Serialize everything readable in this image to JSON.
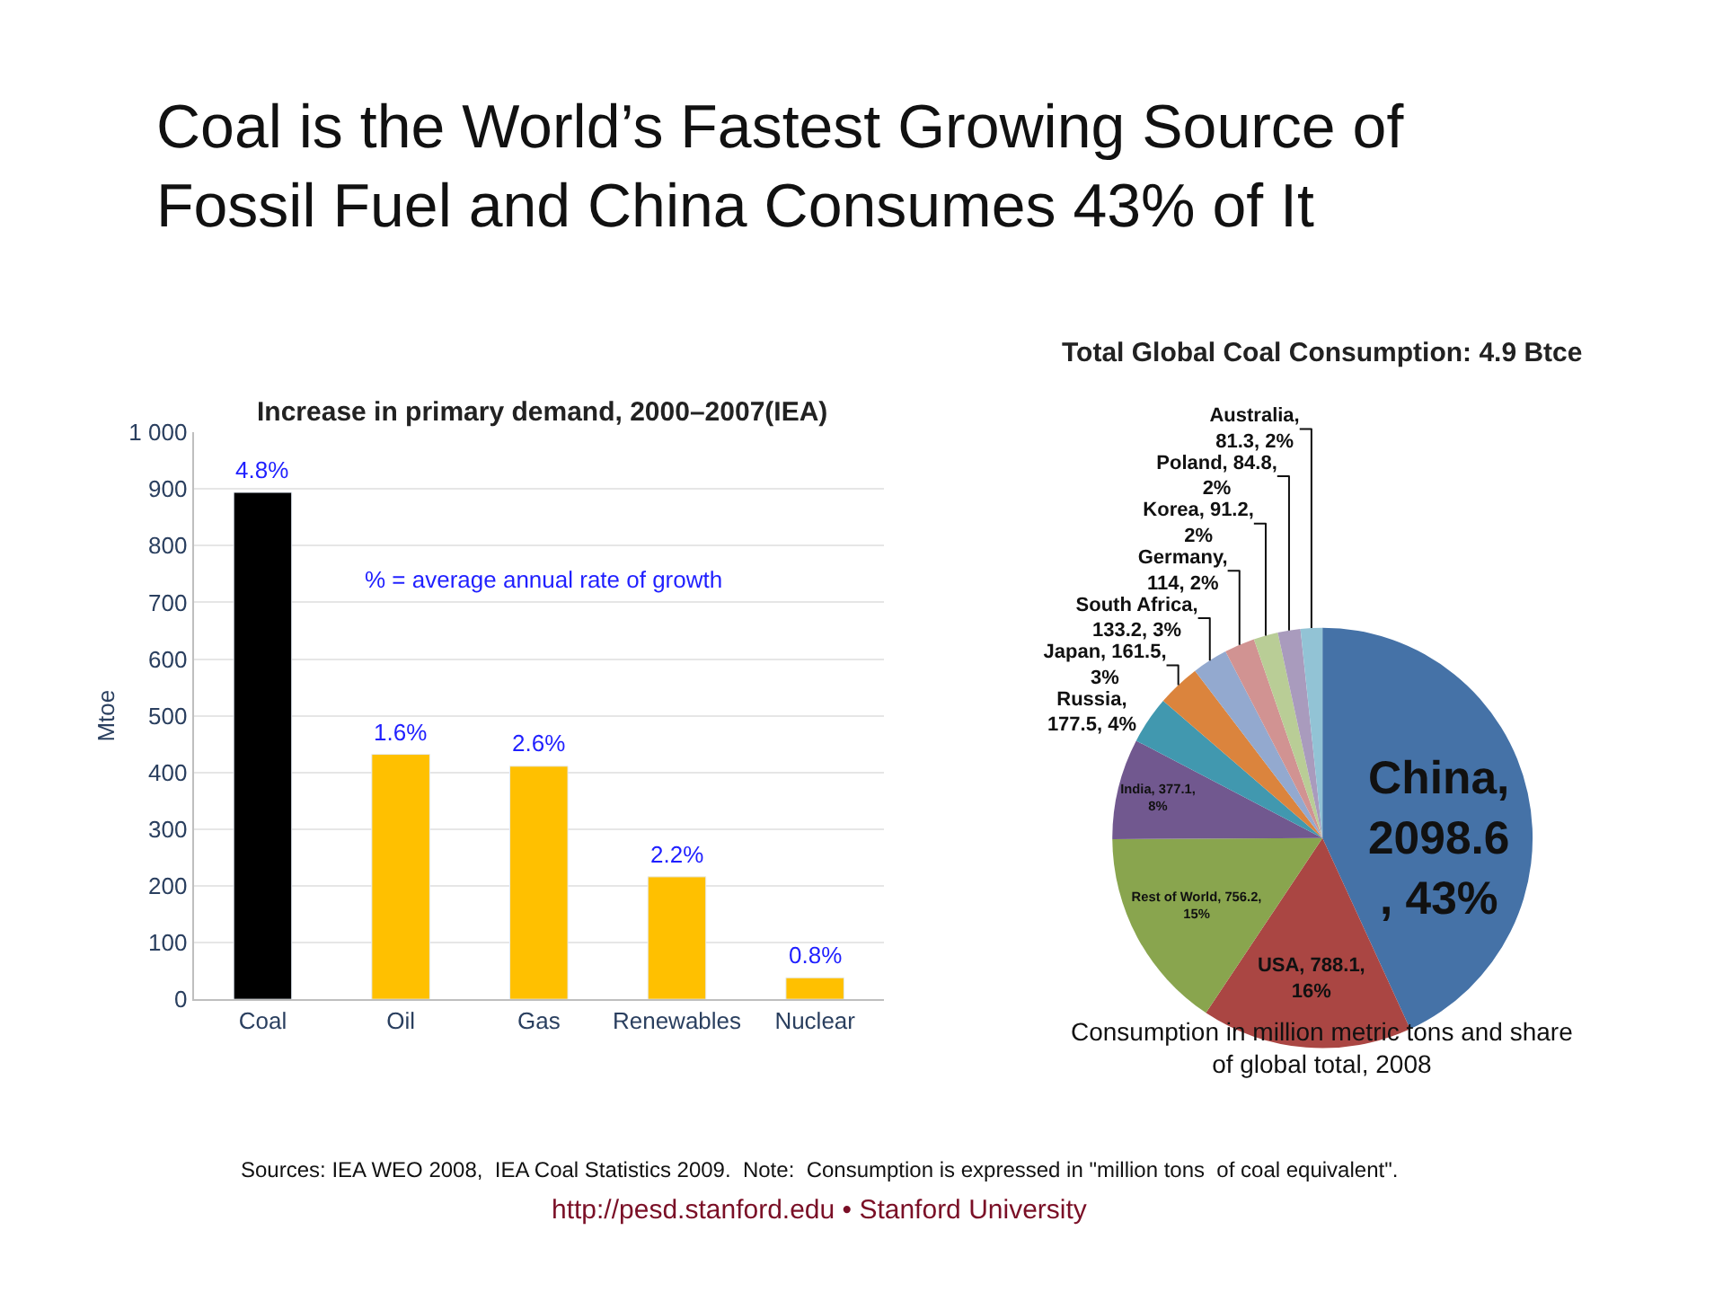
{
  "chart_data": [
    {
      "type": "bar",
      "title": "Coal is the World’s Fastest Growing Source of\nFossil Fuel and China Consumes 43% of It",
      "subtitle": "Increase in primary demand, 2000–2007(IEA)",
      "ylabel": "Mtoe",
      "categories": [
        "Coal",
        "Oil",
        "Gas",
        "Renewables",
        "Nuclear"
      ],
      "values": [
        894,
        432,
        411,
        216,
        38
      ],
      "colors": [
        "#000000",
        "#ffc000",
        "#ffc000",
        "#ffc000",
        "#ffc000"
      ],
      "ylim": [
        0,
        1000
      ],
      "yticks": [
        0,
        100,
        200,
        300,
        400,
        500,
        600,
        700,
        800,
        900,
        {
          "value": 1000,
          "label": "1 000"
        }
      ],
      "grid": "y",
      "legend": false,
      "annotations": [
        {
          "text": "4.8%",
          "x": "Coal",
          "y": 894
        },
        {
          "text": "1.6%",
          "x": "Oil",
          "y": 432
        },
        {
          "text": "2.6%",
          "x": "Gas",
          "y": 411
        },
        {
          "text": "2.2%",
          "x": "Renewables",
          "y": 216
        },
        {
          "text": "0.8%",
          "x": "Nuclear",
          "y": 38
        },
        "% = average annual rate of growth",
        "Sources: IEA WEO 2008,  IEA Coal Statistics 2009.  Note:  Consumption is expressed in \"million tons  of coal equivalent\".",
        "http://pesd.stanford.edu • Stanford University"
      ]
    },
    {
      "type": "pie",
      "title": "Total Global Coal Consumption: 4.9 Btce",
      "categories": [
        "China",
        "USA",
        "Rest of World",
        "India",
        "Russia",
        "Japan",
        "South Africa",
        "Germany",
        "Korea",
        "Poland",
        "Australia"
      ],
      "values": [
        2098.6,
        788.1,
        756.2,
        377.1,
        177.5,
        161.5,
        133.2,
        114,
        91.2,
        84.8,
        81.3
      ],
      "colors": [
        "#4572a7",
        "#aa4643",
        "#89a54e",
        "#71588f",
        "#4198af",
        "#db843d",
        "#93a9cf",
        "#d19392",
        "#b9cd96",
        "#a99bbd",
        "#92c3d5"
      ],
      "value_labels": [
        ",\n2098.6\n, 43%",
        ", 788.1,\n16%",
        ", 756.2,\n15%",
        ", 377.1,\n8%",
        ",\n177.5, 4%",
        ", 161.5,\n3%",
        ",\n133.2, 3%",
        ",\n114, 2%",
        ", 91.2,\n2%",
        ", 84.8,\n2%",
        ",\n81.3, 2%"
      ],
      "legend": false,
      "annotations": [
        "Consumption in million metric tons and share\nof global total, 2008"
      ]
    }
  ]
}
